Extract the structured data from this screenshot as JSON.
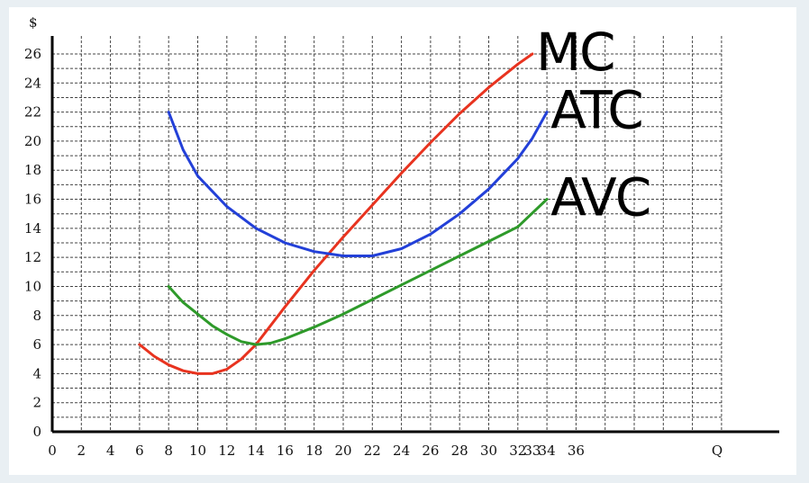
{
  "chart_data": {
    "type": "line",
    "ylabel": "$",
    "xlabel": "Q",
    "x_ticks": [
      "0",
      "2",
      "4",
      "6",
      "8",
      "10",
      "12",
      "14",
      "16",
      "18",
      "20",
      "22",
      "24",
      "26",
      "28",
      "30",
      "32",
      "33",
      "34",
      "36"
    ],
    "y_ticks": [
      "0",
      "2",
      "4",
      "6",
      "8",
      "10",
      "12",
      "14",
      "16",
      "18",
      "20",
      "22",
      "24",
      "26"
    ],
    "xlim": [
      0,
      49
    ],
    "ylim": [
      0,
      27
    ],
    "grid": true,
    "series": [
      {
        "name": "MC",
        "color": "#e8331f",
        "points": [
          [
            6,
            6
          ],
          [
            7,
            5.2
          ],
          [
            8,
            4.6
          ],
          [
            9,
            4.2
          ],
          [
            10,
            4
          ],
          [
            11,
            4
          ],
          [
            12,
            4.3
          ],
          [
            13,
            5
          ],
          [
            14,
            6
          ],
          [
            15,
            7.3
          ],
          [
            16,
            8.6
          ],
          [
            18,
            11.1
          ],
          [
            20,
            13.4
          ],
          [
            22,
            15.6
          ],
          [
            24,
            17.8
          ],
          [
            26,
            19.9
          ],
          [
            28,
            21.9
          ],
          [
            30,
            23.7
          ],
          [
            32,
            25.3
          ],
          [
            33,
            26
          ]
        ]
      },
      {
        "name": "ATC",
        "color": "#2340d8",
        "points": [
          [
            8,
            22
          ],
          [
            9,
            19.4
          ],
          [
            10,
            17.6
          ],
          [
            12,
            15.5
          ],
          [
            14,
            14
          ],
          [
            16,
            13
          ],
          [
            18,
            12.4
          ],
          [
            20,
            12.1
          ],
          [
            22,
            12.1
          ],
          [
            24,
            12.6
          ],
          [
            26,
            13.6
          ],
          [
            28,
            15
          ],
          [
            30,
            16.7
          ],
          [
            32,
            18.8
          ],
          [
            33,
            20.2
          ],
          [
            34,
            22
          ]
        ]
      },
      {
        "name": "AVC",
        "color": "#2e9a2a",
        "points": [
          [
            8,
            10
          ],
          [
            9,
            8.9
          ],
          [
            10,
            8.1
          ],
          [
            11,
            7.3
          ],
          [
            12,
            6.7
          ],
          [
            13,
            6.2
          ],
          [
            14,
            6
          ],
          [
            15,
            6.1
          ],
          [
            16,
            6.4
          ],
          [
            18,
            7.2
          ],
          [
            20,
            8.1
          ],
          [
            22,
            9.1
          ],
          [
            24,
            10.1
          ],
          [
            26,
            11.1
          ],
          [
            28,
            12.1
          ],
          [
            30,
            13.1
          ],
          [
            32,
            14.1
          ],
          [
            34,
            16
          ]
        ]
      }
    ]
  }
}
